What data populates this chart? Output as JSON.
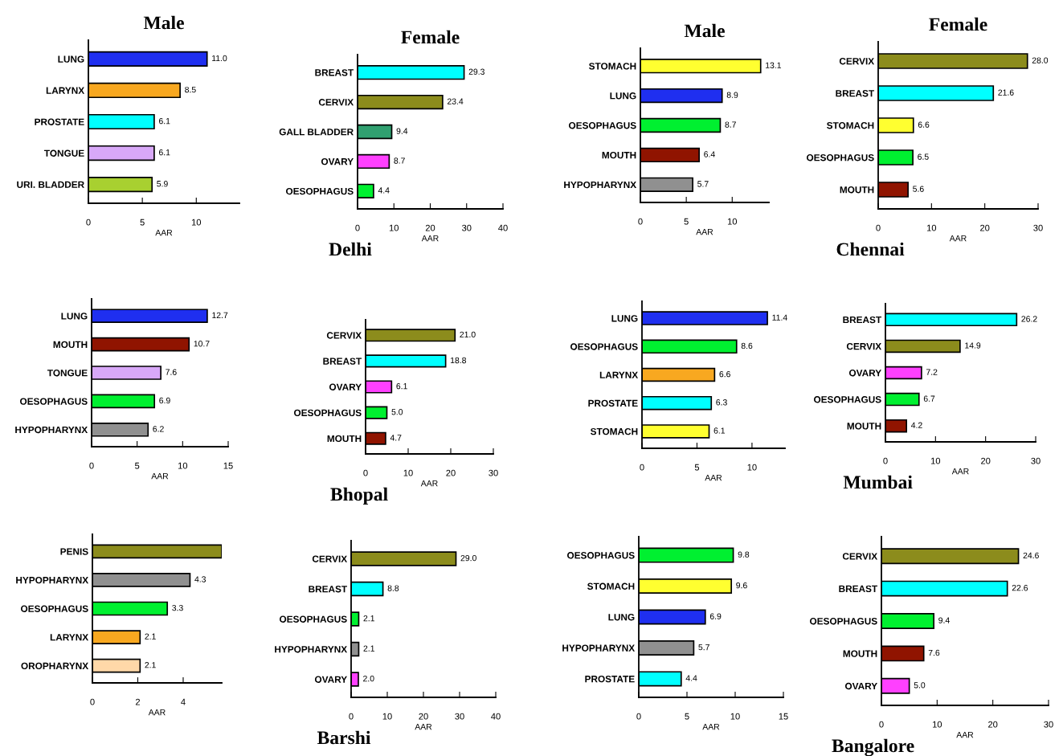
{
  "chart_data": [
    {
      "type": "bar",
      "orientation": "horizontal",
      "title": "Male",
      "xlabel": "AAR",
      "categories": [
        "LUNG",
        "LARYNX",
        "PROSTATE",
        "TONGUE",
        "URI. BLADDER"
      ],
      "values": [
        11.0,
        8.5,
        6.1,
        6.1,
        5.9
      ],
      "value_labels": [
        "11.0",
        "8.5",
        "6.1",
        "6.1",
        "5.9"
      ],
      "colors": [
        "#1f2ff0",
        "#f8a820",
        "#00ffff",
        "#d8a8f8",
        "#a8d030"
      ],
      "xlim": [
        0,
        14
      ],
      "xticks": [
        0,
        5,
        10
      ]
    },
    {
      "type": "bar",
      "orientation": "horizontal",
      "title": "Female",
      "xlabel": "AAR",
      "annotations": [
        "Delhi"
      ],
      "categories": [
        "BREAST",
        "CERVIX",
        "GALL BLADDER",
        "OVARY",
        "OESOPHAGUS"
      ],
      "values": [
        29.3,
        23.4,
        9.4,
        8.7,
        4.4
      ],
      "value_labels": [
        "29.3",
        "23.4",
        "9.4",
        "8.7",
        "4.4"
      ],
      "colors": [
        "#00ffff",
        "#8c8c1c",
        "#30a070",
        "#ff40ff",
        "#00f030"
      ],
      "xlim": [
        0,
        40
      ],
      "xticks": [
        0,
        10,
        20,
        30,
        40
      ]
    },
    {
      "type": "bar",
      "orientation": "horizontal",
      "title": "Male",
      "xlabel": "AAR",
      "categories": [
        "STOMACH",
        "LUNG",
        "OESOPHAGUS",
        "MOUTH",
        "HYPOPHARYNX"
      ],
      "values": [
        13.1,
        8.9,
        8.7,
        6.4,
        5.7
      ],
      "value_labels": [
        "13.1",
        "8.9",
        "8.7",
        "6.4",
        "5.7"
      ],
      "colors": [
        "#ffff30",
        "#1f2ff0",
        "#00f030",
        "#901400",
        "#909090"
      ],
      "xlim": [
        0,
        14
      ],
      "xticks": [
        0,
        5,
        10
      ]
    },
    {
      "type": "bar",
      "orientation": "horizontal",
      "title": "Female",
      "xlabel": "AAR",
      "annotations": [
        "Chennai"
      ],
      "categories": [
        "CERVIX",
        "BREAST",
        "STOMACH",
        "OESOPHAGUS",
        "MOUTH"
      ],
      "values": [
        28.0,
        21.6,
        6.6,
        6.5,
        5.6
      ],
      "value_labels": [
        "28.0",
        "21.6",
        "6.6",
        "6.5",
        "5.6"
      ],
      "colors": [
        "#8c8c1c",
        "#00ffff",
        "#ffff30",
        "#00f030",
        "#901400"
      ],
      "xlim": [
        0,
        30
      ],
      "xticks": [
        0,
        10,
        20,
        30
      ]
    },
    {
      "type": "bar",
      "orientation": "horizontal",
      "xlabel": "AAR",
      "categories": [
        "LUNG",
        "MOUTH",
        "TONGUE",
        "OESOPHAGUS",
        "HYPOPHARYNX"
      ],
      "values": [
        12.7,
        10.7,
        7.6,
        6.9,
        6.2
      ],
      "value_labels": [
        "12.7",
        "10.7",
        "7.6",
        "6.9",
        "6.2"
      ],
      "colors": [
        "#1f2ff0",
        "#901400",
        "#d8a8f8",
        "#00f030",
        "#909090"
      ],
      "xlim": [
        0,
        15
      ],
      "xticks": [
        0,
        5,
        10,
        15
      ]
    },
    {
      "type": "bar",
      "orientation": "horizontal",
      "xlabel": "AAR",
      "annotations": [
        "Bhopal"
      ],
      "categories": [
        "CERVIX",
        "BREAST",
        "OVARY",
        "OESOPHAGUS",
        "MOUTH"
      ],
      "values": [
        21.0,
        18.8,
        6.1,
        5.0,
        4.7
      ],
      "value_labels": [
        "21.0",
        "18.8",
        "6.1",
        "5.0",
        "4.7"
      ],
      "colors": [
        "#8c8c1c",
        "#00ffff",
        "#ff40ff",
        "#00f030",
        "#901400"
      ],
      "xlim": [
        0,
        30
      ],
      "xticks": [
        0,
        10,
        20,
        30
      ]
    },
    {
      "type": "bar",
      "orientation": "horizontal",
      "xlabel": "AAR",
      "categories": [
        "LUNG",
        "OESOPHAGUS",
        "LARYNX",
        "PROSTATE",
        "STOMACH"
      ],
      "values": [
        11.4,
        8.6,
        6.6,
        6.3,
        6.1
      ],
      "value_labels": [
        "11.4",
        "8.6",
        "6.6",
        "6.3",
        "6.1"
      ],
      "colors": [
        "#1f2ff0",
        "#00f030",
        "#f8a820",
        "#00ffff",
        "#ffff30"
      ],
      "xlim": [
        0,
        13
      ],
      "xticks": [
        0,
        5,
        10
      ]
    },
    {
      "type": "bar",
      "orientation": "horizontal",
      "xlabel": "AAR",
      "annotations": [
        "Mumbai"
      ],
      "categories": [
        "BREAST",
        "CERVIX",
        "OVARY",
        "OESOPHAGUS",
        "MOUTH"
      ],
      "values": [
        26.2,
        14.9,
        7.2,
        6.7,
        4.2
      ],
      "value_labels": [
        "26.2",
        "14.9",
        "7.2",
        "6.7",
        "4.2"
      ],
      "colors": [
        "#00ffff",
        "#8c8c1c",
        "#ff40ff",
        "#00f030",
        "#901400"
      ],
      "xlim": [
        0,
        30
      ],
      "xticks": [
        0,
        10,
        20,
        30
      ]
    },
    {
      "type": "bar",
      "orientation": "horizontal",
      "xlabel": "AAR",
      "categories": [
        "PENIS",
        "HYPOPHARYNX",
        "OESOPHAGUS",
        "LARYNX",
        "OROPHARYNX"
      ],
      "values": [
        5.7,
        4.3,
        3.3,
        2.1,
        2.1
      ],
      "value_labels": [
        null,
        "4.3",
        "3.3",
        "2.1",
        "2.1"
      ],
      "colors": [
        "#8c8c1c",
        "#909090",
        "#00f030",
        "#f8a820",
        "#ffd8a8"
      ],
      "xlim": [
        0,
        5.7
      ],
      "xticks": [
        0,
        2,
        4
      ]
    },
    {
      "type": "bar",
      "orientation": "horizontal",
      "xlabel": "AAR",
      "annotations": [
        "Barshi"
      ],
      "categories": [
        "CERVIX",
        "BREAST",
        "OESOPHAGUS",
        "HYPOPHARYNX",
        "OVARY"
      ],
      "values": [
        29.0,
        8.8,
        2.1,
        2.1,
        2.0
      ],
      "value_labels": [
        "29.0",
        "8.8",
        "2.1",
        "2.1",
        "2.0"
      ],
      "colors": [
        "#8c8c1c",
        "#00ffff",
        "#00f030",
        "#909090",
        "#ff40ff"
      ],
      "xlim": [
        0,
        40
      ],
      "xticks": [
        0,
        10,
        20,
        30,
        40
      ]
    },
    {
      "type": "bar",
      "orientation": "horizontal",
      "xlabel": "AAR",
      "categories": [
        "OESOPHAGUS",
        "STOMACH",
        "LUNG",
        "HYPOPHARYNX",
        "PROSTATE"
      ],
      "values": [
        9.8,
        9.6,
        6.9,
        5.7,
        4.4
      ],
      "value_labels": [
        "9.8",
        "9.6",
        "6.9",
        "5.7",
        "4.4"
      ],
      "colors": [
        "#00f030",
        "#ffff30",
        "#1f2ff0",
        "#909090",
        "#00ffff"
      ],
      "xlim": [
        0,
        15
      ],
      "xticks": [
        0,
        5,
        10,
        15
      ]
    },
    {
      "type": "bar",
      "orientation": "horizontal",
      "xlabel": "AAR",
      "annotations": [
        "Bangalore"
      ],
      "categories": [
        "CERVIX",
        "BREAST",
        "OESOPHAGUS",
        "MOUTH",
        "OVARY"
      ],
      "values": [
        24.6,
        22.6,
        9.4,
        7.6,
        5.0
      ],
      "value_labels": [
        "24.6",
        "22.6",
        "9.4",
        "7.6",
        "5.0"
      ],
      "colors": [
        "#8c8c1c",
        "#00ffff",
        "#00f030",
        "#901400",
        "#ff40ff"
      ],
      "xlim": [
        0,
        30
      ],
      "xticks": [
        0,
        10,
        20,
        30
      ]
    }
  ]
}
